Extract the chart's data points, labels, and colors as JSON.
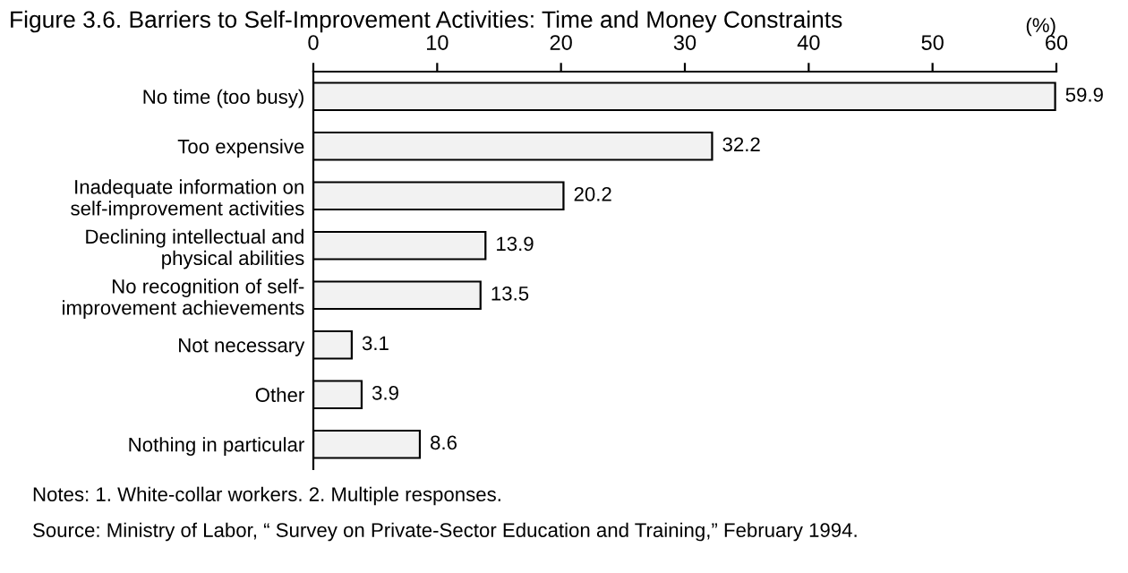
{
  "chart_data": {
    "type": "bar",
    "orientation": "horizontal",
    "title": "Figure 3.6. Barriers to Self-Improvement Activities: Time and Money Constraints",
    "xlabel": "(%)",
    "categories": [
      "No time (too busy)",
      "Too expensive",
      "Inadequate information on\nself-improvement activities",
      "Declining intellectual and\nphysical abilities",
      "No recognition of self-\nimprovement achievements",
      "Not necessary",
      "Other",
      "Nothing in particular"
    ],
    "values": [
      59.9,
      32.2,
      20.2,
      13.9,
      13.5,
      3.1,
      3.9,
      8.6
    ],
    "color": "#f2f2f2",
    "xlim": [
      0,
      60
    ],
    "xticks": [
      0,
      10,
      20,
      30,
      40,
      50,
      60
    ],
    "data_labels": true,
    "grid": false,
    "legend": false,
    "annotations": [
      "Notes: 1. White-collar workers. 2. Multiple responses.",
      "Source: Ministry of Labor, “ Survey on Private-Sector Education and Training,” February 1994."
    ]
  }
}
